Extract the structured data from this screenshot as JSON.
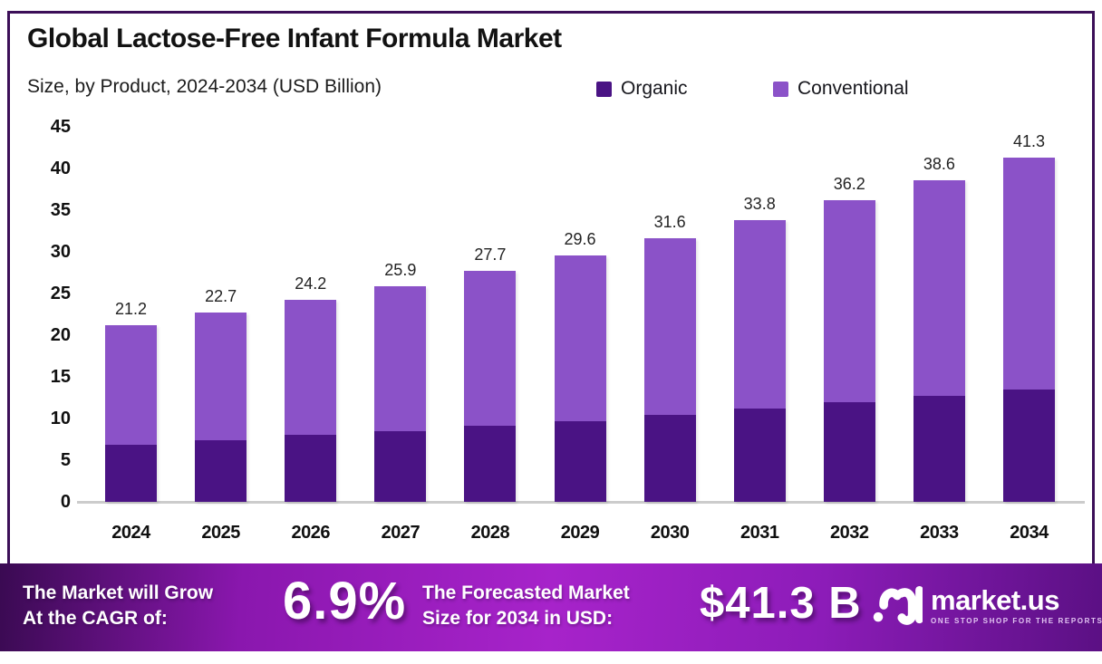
{
  "header": {
    "title": "Global Lactose-Free Infant Formula Market",
    "subtitle": "Size, by Product, 2024-2034 (USD Billion)"
  },
  "legend": [
    {
      "label": "Organic",
      "color": "#4A1384"
    },
    {
      "label": "Conventional",
      "color": "#8B52C8"
    }
  ],
  "chart_data": {
    "type": "bar",
    "stacked": true,
    "title": "Global Lactose-Free Infant Formula Market Size, by Product, 2024-2034 (USD Billion)",
    "categories": [
      "2024",
      "2025",
      "2026",
      "2027",
      "2028",
      "2029",
      "2030",
      "2031",
      "2032",
      "2033",
      "2034"
    ],
    "series": [
      {
        "name": "Organic",
        "color": "#4A1384",
        "values": [
          6.8,
          7.4,
          8.0,
          8.5,
          9.1,
          9.7,
          10.4,
          11.2,
          12.0,
          12.7,
          13.5
        ]
      },
      {
        "name": "Conventional",
        "color": "#8B52C8",
        "values": [
          14.4,
          15.3,
          16.2,
          17.4,
          18.6,
          19.9,
          21.2,
          22.6,
          24.2,
          25.9,
          27.8
        ]
      }
    ],
    "totals": [
      21.2,
      22.7,
      24.2,
      25.9,
      27.7,
      29.6,
      31.6,
      33.8,
      36.2,
      38.6,
      41.3
    ],
    "total_labels": [
      "21.2",
      "22.7",
      "24.2",
      "25.9",
      "27.7",
      "29.6",
      "31.6",
      "33.8",
      "36.2",
      "38.6",
      "41.3"
    ],
    "xlabel": "",
    "ylabel": "",
    "ylim": [
      0,
      45
    ],
    "yticks": [
      0,
      5,
      10,
      15,
      20,
      25,
      30,
      35,
      40,
      45
    ],
    "grid": false,
    "legend_position": "top"
  },
  "footer": {
    "cagr_label_line1": "The Market will Grow",
    "cagr_label_line2": "At the CAGR of:",
    "cagr_value": "6.9%",
    "forecast_label_line1": "The Forecasted Market",
    "forecast_label_line2": "Size for 2034 in USD:",
    "forecast_value": "$41.3 B",
    "brand": {
      "name": "market.us",
      "tagline": "ONE STOP SHOP FOR THE REPORTS"
    }
  },
  "colors": {
    "frame_border": "#3C0F58",
    "axis_line": "#CCCCCC",
    "banner_gradient_start": "#3A0A52",
    "banner_gradient_mid": "#A723CA",
    "banner_gradient_end": "#5B1084"
  }
}
